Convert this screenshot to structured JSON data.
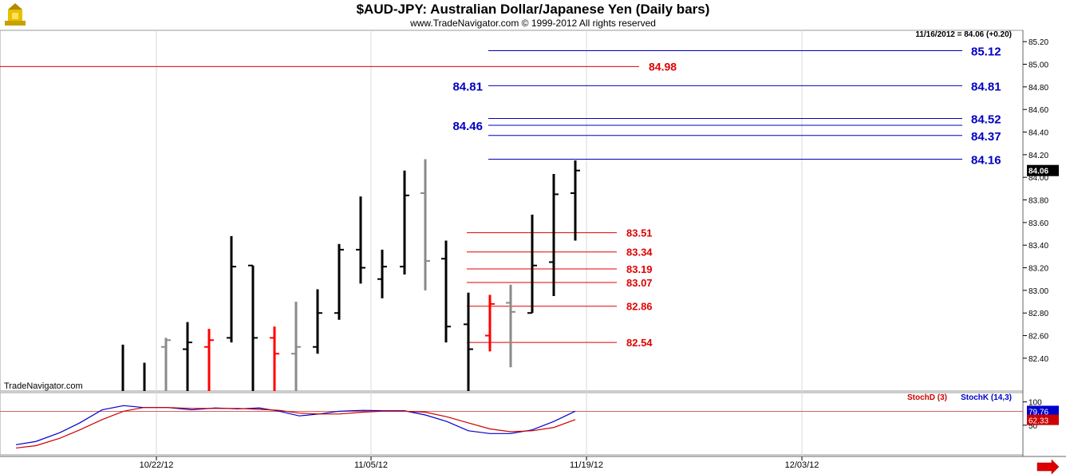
{
  "header": {
    "title": "$AUD-JPY:  Australian Dollar/Japanese Yen  (Daily bars)",
    "subtitle": "www.TradeNavigator.com © 1999-2012 All rights reserved"
  },
  "colors": {
    "up_bar": "#000000",
    "down_bar": "#8a8a8a",
    "highlight_bar": "#ff0000",
    "blue_level": "#0000c0",
    "red_level": "#e00000",
    "stochD": "#cc0000",
    "stochK": "#0000cc"
  },
  "chart_data": [
    {
      "type": "ohlc",
      "watermark": "TradeNavigator.com",
      "last_info": "11/16/2012 = 84.06 (+0.20)",
      "last_price_label": "84.06",
      "ylim": [
        82.11,
        85.3
      ],
      "y_ticks": [
        "82.40",
        "82.60",
        "82.80",
        "83.00",
        "83.20",
        "83.40",
        "83.60",
        "83.80",
        "84.00",
        "84.20",
        "84.40",
        "84.60",
        "84.80",
        "85.00",
        "85.20"
      ],
      "x_ticks": [
        "10/22/12",
        "11/05/12",
        "11/19/12",
        "12/03/12"
      ],
      "bars": [
        {
          "x": 154,
          "o": null,
          "h": 82.52,
          "l": 82.1,
          "c": null,
          "color": "up"
        },
        {
          "x": 181,
          "o": null,
          "h": 82.36,
          "l": 82.1,
          "c": null,
          "color": "up"
        },
        {
          "x": 208,
          "o": 82.5,
          "h": 82.58,
          "l": 82.1,
          "c": 82.56,
          "color": "down"
        },
        {
          "x": 235,
          "o": 82.48,
          "h": 82.72,
          "l": 82.1,
          "c": 82.54,
          "color": "up"
        },
        {
          "x": 262,
          "o": 82.5,
          "h": 82.66,
          "l": 82.1,
          "c": 82.56,
          "color": "red"
        },
        {
          "x": 290,
          "o": 82.58,
          "h": 83.48,
          "l": 82.54,
          "c": 83.21,
          "color": "up"
        },
        {
          "x": 317,
          "o": 83.22,
          "h": 83.22,
          "l": 82.1,
          "c": 82.58,
          "color": "up"
        },
        {
          "x": 344,
          "o": 82.58,
          "h": 82.68,
          "l": 82.1,
          "c": 82.44,
          "color": "red"
        },
        {
          "x": 371,
          "o": 82.44,
          "h": 82.9,
          "l": 82.1,
          "c": 82.5,
          "color": "down"
        },
        {
          "x": 398,
          "o": 82.5,
          "h": 83.01,
          "l": 82.44,
          "c": 82.8,
          "color": "up"
        },
        {
          "x": 425,
          "o": 82.8,
          "h": 83.41,
          "l": 82.74,
          "c": 83.36,
          "color": "up"
        },
        {
          "x": 452,
          "o": 83.36,
          "h": 83.83,
          "l": 83.06,
          "c": 83.2,
          "color": "up"
        },
        {
          "x": 479,
          "o": 83.1,
          "h": 83.36,
          "l": 82.93,
          "c": 83.21,
          "color": "up"
        },
        {
          "x": 507,
          "o": 83.21,
          "h": 84.06,
          "l": 83.14,
          "c": 83.84,
          "color": "up"
        },
        {
          "x": 533,
          "o": 83.86,
          "h": 84.16,
          "l": 83.0,
          "c": 83.26,
          "color": "down"
        },
        {
          "x": 559,
          "o": 83.28,
          "h": 83.44,
          "l": 82.54,
          "c": 82.68,
          "color": "up"
        },
        {
          "x": 587,
          "o": 82.7,
          "h": 82.98,
          "l": 82.1,
          "c": 82.48,
          "color": "up"
        },
        {
          "x": 614,
          "o": 82.6,
          "h": 82.96,
          "l": 82.46,
          "c": 82.88,
          "color": "red"
        },
        {
          "x": 640,
          "o": 82.89,
          "h": 83.05,
          "l": 82.32,
          "c": 82.81,
          "color": "down"
        },
        {
          "x": 667,
          "o": 82.8,
          "h": 83.67,
          "l": 82.8,
          "c": 83.22,
          "color": "up"
        },
        {
          "x": 694,
          "o": 83.25,
          "h": 84.03,
          "l": 82.95,
          "c": 83.85,
          "color": "up"
        },
        {
          "x": 721,
          "o": 83.86,
          "h": 84.15,
          "l": 83.44,
          "c": 84.06,
          "color": "up"
        }
      ],
      "blue_levels": [
        {
          "value": 85.12,
          "label": "85.12",
          "side": "right"
        },
        {
          "value": 84.81,
          "label": "84.81",
          "side": "both"
        },
        {
          "value": 84.52,
          "label": "84.52",
          "side": "right"
        },
        {
          "value": 84.46,
          "label": "84.46",
          "side": "left"
        },
        {
          "value": 84.37,
          "label": "84.37",
          "side": "right"
        },
        {
          "value": 84.16,
          "label": "84.16",
          "side": "right"
        }
      ],
      "red_levels": [
        {
          "value": 84.98,
          "label": "84.98",
          "x1": 0,
          "x2": 801
        },
        {
          "value": 83.51,
          "label": "83.51",
          "x1": 585,
          "x2": 773
        },
        {
          "value": 83.34,
          "label": "83.34",
          "x1": 585,
          "x2": 773
        },
        {
          "value": 83.19,
          "label": "83.19",
          "x1": 585,
          "x2": 773
        },
        {
          "value": 83.07,
          "label": "83.07",
          "x1": 585,
          "x2": 773
        },
        {
          "value": 82.86,
          "label": "82.86",
          "x1": 585,
          "x2": 773
        },
        {
          "value": 82.54,
          "label": "82.54",
          "x1": 585,
          "x2": 773
        }
      ]
    },
    {
      "type": "line",
      "legend": [
        "StochD (3)",
        "StochK (14,3)"
      ],
      "ylim": [
        0,
        120
      ],
      "y_ticks": [
        "100",
        "50"
      ],
      "ref_line": 79.76,
      "last_k_label": "79.76",
      "last_d_label": "62.33",
      "series": [
        {
          "name": "StochK (14,3)",
          "x": [
            20,
            45,
            75,
            100,
            128,
            155,
            180,
            210,
            240,
            270,
            298,
            325,
            350,
            375,
            400,
            425,
            455,
            480,
            507,
            533,
            560,
            587,
            614,
            640,
            667,
            694,
            721
          ],
          "values": [
            8,
            15,
            34,
            55,
            83,
            92,
            88,
            88,
            83,
            87,
            85,
            87,
            80,
            70,
            74,
            80,
            82,
            81,
            81,
            72,
            58,
            38,
            32,
            32,
            40,
            58,
            80
          ]
        },
        {
          "name": "StochD (3)",
          "x": [
            20,
            45,
            75,
            100,
            128,
            155,
            180,
            210,
            240,
            270,
            298,
            325,
            350,
            375,
            400,
            425,
            455,
            480,
            507,
            533,
            560,
            587,
            614,
            640,
            667,
            694,
            721
          ],
          "values": [
            1,
            6,
            22,
            40,
            62,
            80,
            88,
            88,
            86,
            86,
            86,
            84,
            82,
            76,
            74,
            74,
            78,
            80,
            80,
            78,
            68,
            55,
            42,
            36,
            38,
            45,
            62
          ]
        }
      ]
    }
  ]
}
